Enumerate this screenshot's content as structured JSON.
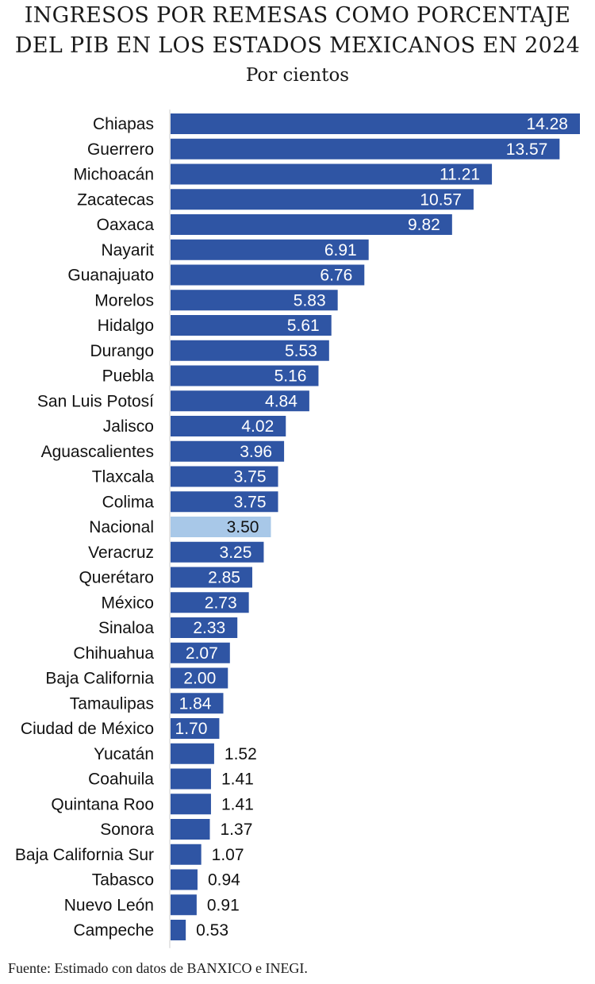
{
  "header": {
    "title_line1": "INGRESOS POR REMESAS COMO PORCENTAJE",
    "title_line2": "DEL PIB EN LOS ESTADOS MEXICANOS EN 2024",
    "subtitle": "Por cientos"
  },
  "footer": {
    "source": "Fuente: Estimado con datos de BANXICO e INEGI."
  },
  "chart_data": {
    "type": "bar",
    "orientation": "horizontal",
    "title": "INGRESOS POR REMESAS COMO PORCENTAJE DEL PIB EN LOS ESTADOS MEXICANOS EN 2024",
    "subtitle": "Por cientos",
    "categories": [
      "Chiapas",
      "Guerrero",
      "Michoacán",
      "Zacatecas",
      "Oaxaca",
      "Nayarit",
      "Guanajuato",
      "Morelos",
      "Hidalgo",
      "Durango",
      "Puebla",
      "San Luis Potosí",
      "Jalisco",
      "Aguascalientes",
      "Tlaxcala",
      "Colima",
      "Nacional",
      "Veracruz",
      "Querétaro",
      "México",
      "Sinaloa",
      "Chihuahua",
      "Baja California",
      "Tamaulipas",
      "Ciudad de México",
      "Yucatán",
      "Coahuila",
      "Quintana Roo",
      "Sonora",
      "Baja California Sur",
      "Tabasco",
      "Nuevo León",
      "Campeche"
    ],
    "values": [
      14.28,
      13.57,
      11.21,
      10.57,
      9.82,
      6.91,
      6.76,
      5.83,
      5.61,
      5.53,
      5.16,
      4.84,
      4.02,
      3.96,
      3.75,
      3.75,
      3.5,
      3.25,
      2.85,
      2.73,
      2.33,
      2.07,
      2.0,
      1.84,
      1.7,
      1.52,
      1.41,
      1.41,
      1.37,
      1.07,
      0.94,
      0.91,
      0.53
    ],
    "value_labels": [
      "14.28",
      "13.57",
      "11.21",
      "10.57",
      "9.82",
      "6.91",
      "6.76",
      "5.83",
      "5.61",
      "5.53",
      "5.16",
      "4.84",
      "4.02",
      "3.96",
      "3.75",
      "3.75",
      "3.50",
      "3.25",
      "2.85",
      "2.73",
      "2.33",
      "2.07",
      "2.00",
      "1.84",
      "1.70",
      "1.52",
      "1.41",
      "1.41",
      "1.37",
      "1.07",
      "0.94",
      "0.91",
      "0.53"
    ],
    "highlight_category": "Nacional",
    "colors": {
      "bar": "#2f55a4",
      "highlight": "#a8c8e8",
      "axis": "#cccccc"
    },
    "xlim": [
      0,
      14.28
    ],
    "grid": false,
    "legend": "none"
  }
}
